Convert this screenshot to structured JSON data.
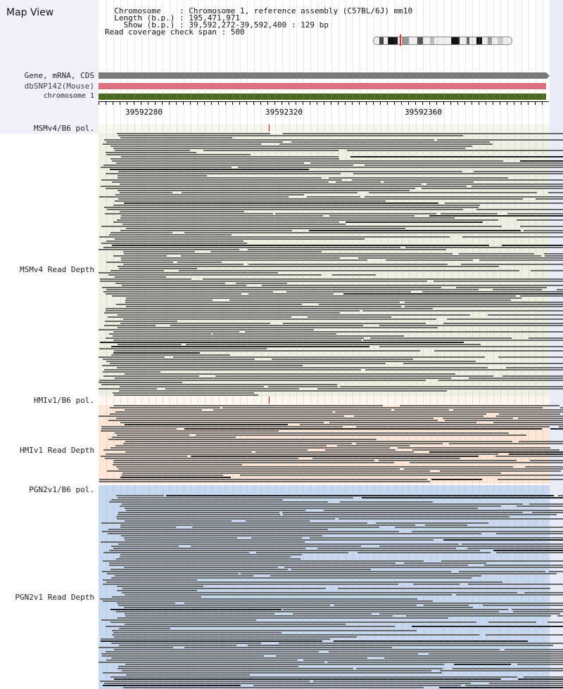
{
  "title": "Map View",
  "info": {
    "line1": "  Chromosome    : Chromosome 1, reference assembly (C57BL/6J) mm10",
    "line2": "  Length (b.p.) : 195,471,971",
    "line3": "    Show (b.p.) : 39,592,272-39,592,400 : 129 bp",
    "line4": "Read coverage check span : 500"
  },
  "tracks": {
    "gene": "Gene, mRNA, CDS",
    "snp": "dbSNP142(Mouse)",
    "chrom": "chromosome 1",
    "msm_pol": "MSMv4/B6 pol.",
    "msm_depth": "MSMv4 Read Depth",
    "hmi_pol": "HMIv1/B6 pol.",
    "hmi_depth": "HMIv1 Read Depth",
    "pgn_pol": "PGN2v1/B6 pol.",
    "pgn_depth": "PGN2v1 Read Depth"
  },
  "ruler": {
    "labels": [
      "39592280",
      "39592320",
      "39592360"
    ]
  },
  "colors": {
    "gene": "#7a7a7a",
    "snp": "#e07080",
    "chrom": "#4a6a22",
    "msm_bg": "#eef1e2",
    "hmi_bg": "#fde6d6",
    "pgn_bg": "#c8d8f0",
    "read": "#666666",
    "read_dark": "#1a1a1a",
    "pol_mark": "#cc2222"
  }
}
